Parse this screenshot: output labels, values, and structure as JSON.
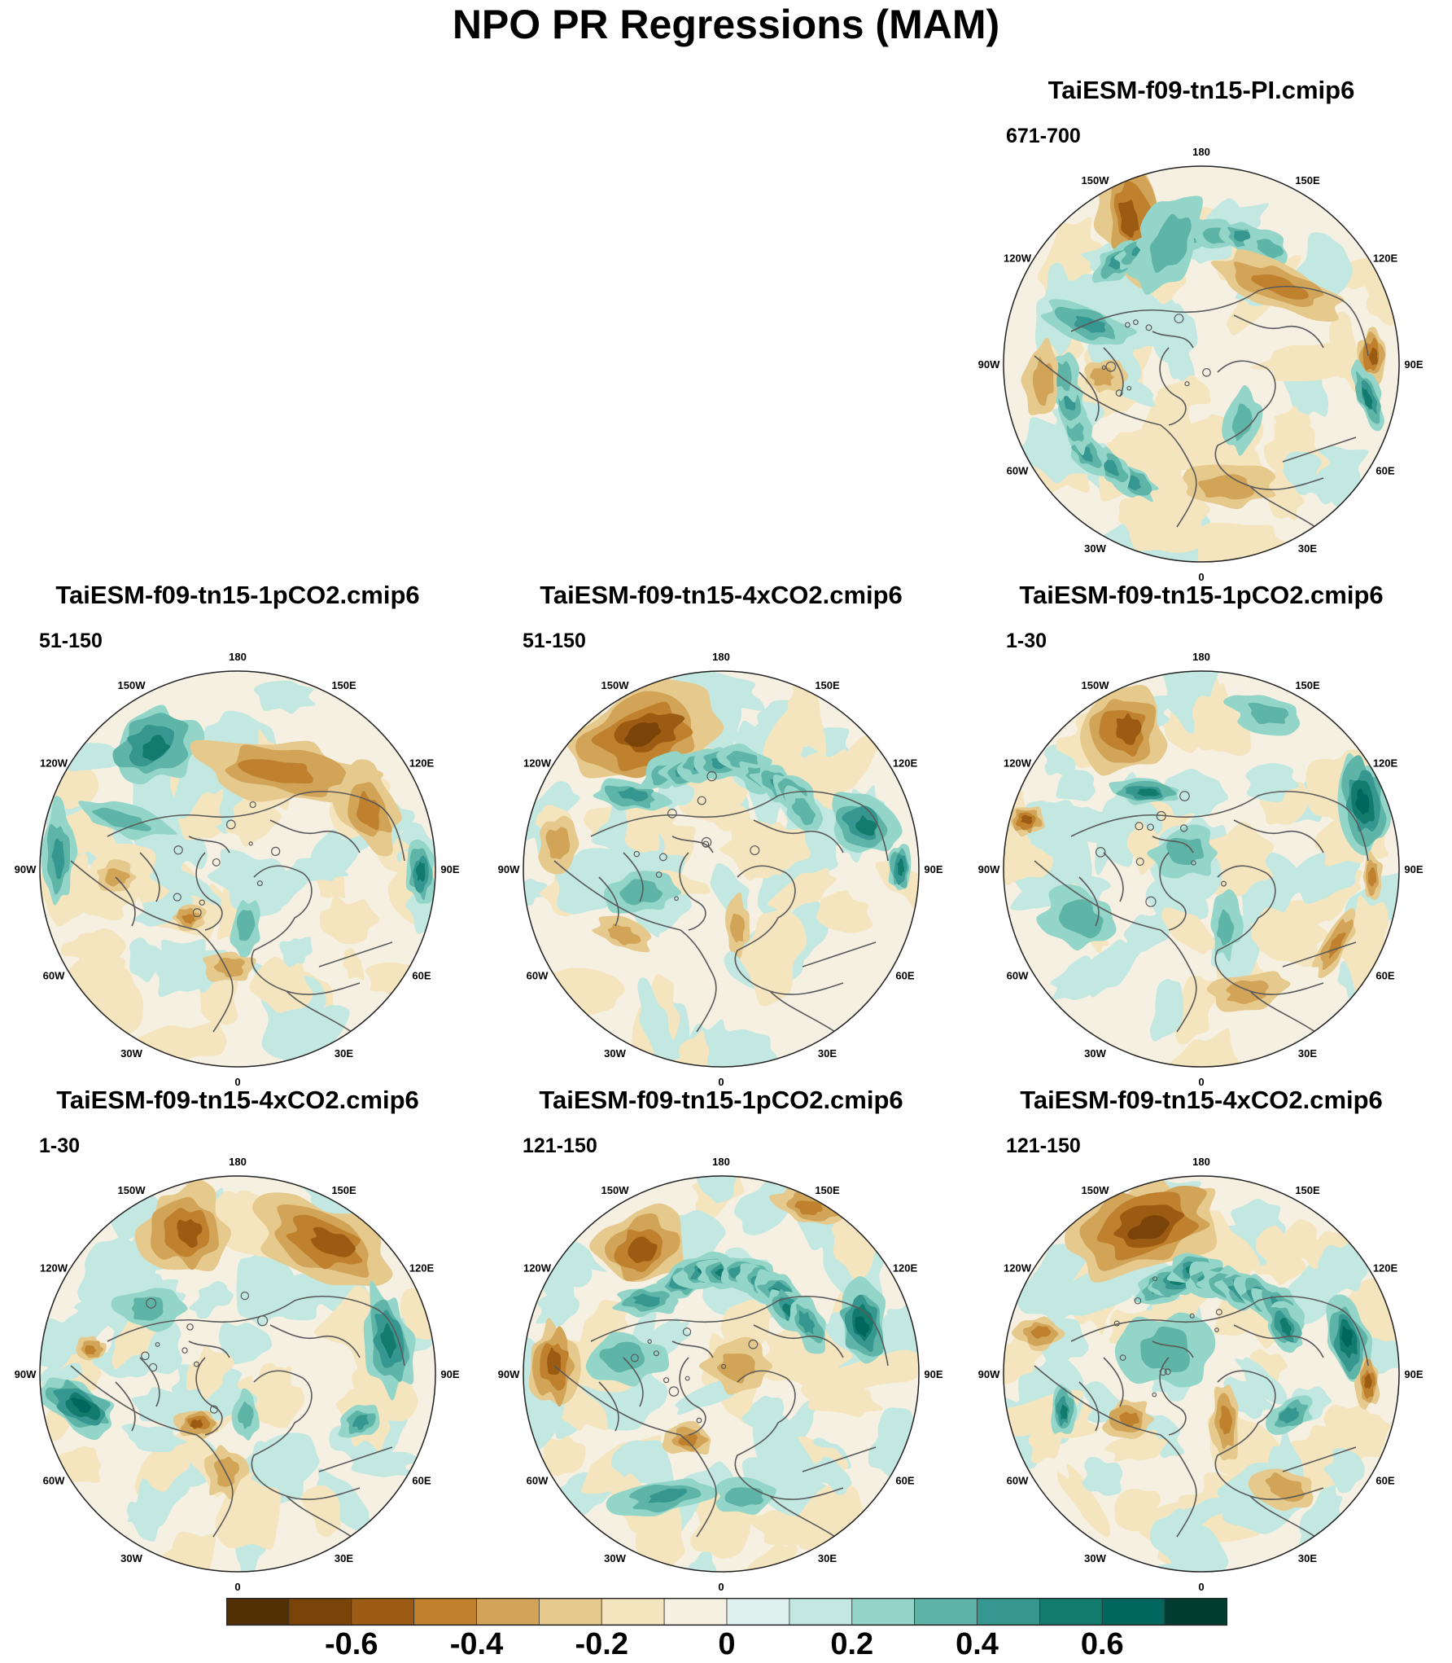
{
  "title": "NPO PR Regressions (MAM)",
  "longitude_labels": [
    "180",
    "150E",
    "120E",
    "90E",
    "60E",
    "30E",
    "0",
    "30W",
    "60W",
    "90W",
    "120W",
    "150W"
  ],
  "panels": [
    {
      "id": "p1",
      "title": "TaiESM-f09-tn15-PI.cmip6",
      "years": "671-700"
    },
    {
      "id": "p2",
      "title": "TaiESM-f09-tn15-1pCO2.cmip6",
      "years": "51-150"
    },
    {
      "id": "p3",
      "title": "TaiESM-f09-tn15-4xCO2.cmip6",
      "years": "51-150"
    },
    {
      "id": "p4",
      "title": "TaiESM-f09-tn15-1pCO2.cmip6",
      "years": "1-30"
    },
    {
      "id": "p5",
      "title": "TaiESM-f09-tn15-4xCO2.cmip6",
      "years": "1-30"
    },
    {
      "id": "p6",
      "title": "TaiESM-f09-tn15-1pCO2.cmip6",
      "years": "121-150"
    },
    {
      "id": "p7",
      "title": "TaiESM-f09-tn15-4xCO2.cmip6",
      "years": "121-150"
    }
  ],
  "colorbar": {
    "levels": [
      -0.7,
      -0.6,
      -0.5,
      -0.4,
      -0.3,
      -0.2,
      -0.1,
      0,
      0.1,
      0.2,
      0.3,
      0.4,
      0.5,
      0.6,
      0.7
    ],
    "labels": [
      "-0.6",
      "-0.4",
      "-0.2",
      "0",
      "0.2",
      "0.4",
      "0.6"
    ],
    "colors": [
      "#543005",
      "#7a4408",
      "#9c5b12",
      "#bf812d",
      "#d2a458",
      "#e6c98d",
      "#f5e5bf",
      "#f5f0e2",
      "#e0f0ee",
      "#c3e8e1",
      "#94d5c9",
      "#5fb4a8",
      "#35978f",
      "#137a6e",
      "#01665e",
      "#003c30"
    ]
  }
}
